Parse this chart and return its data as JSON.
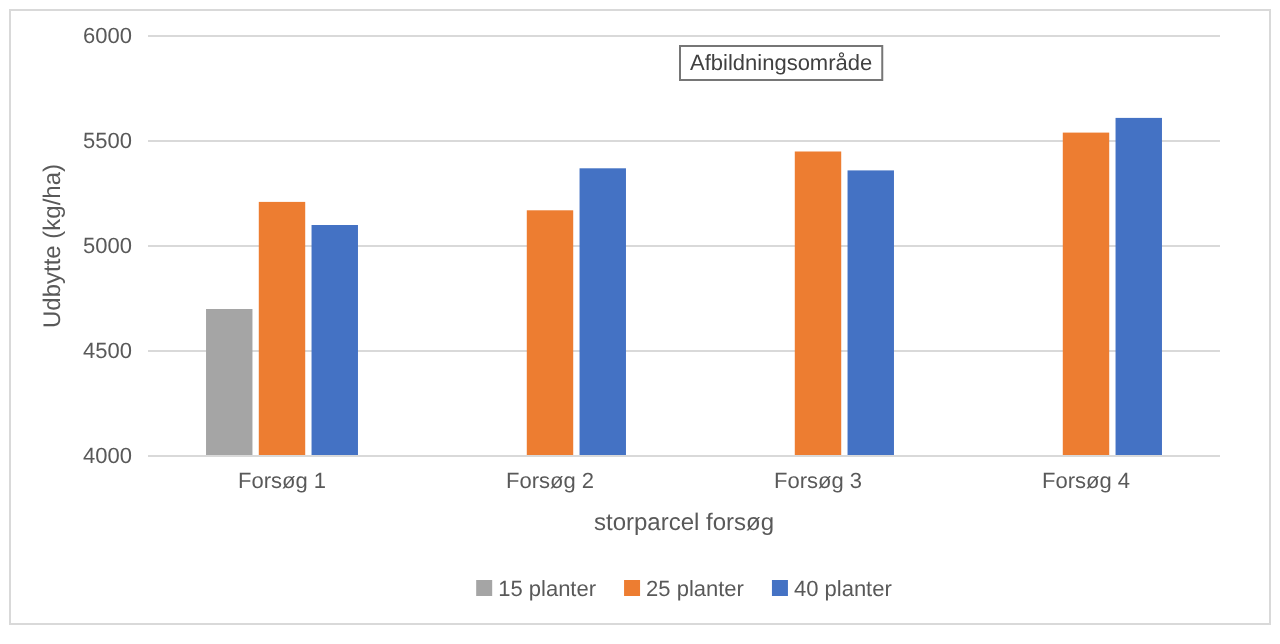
{
  "chart_data": {
    "type": "bar",
    "xlabel": "storparcel forsøg",
    "ylabel": "Udbytte (kg/ha)",
    "categories": [
      "Forsøg 1",
      "Forsøg 2",
      "Forsøg 3",
      "Forsøg 4"
    ],
    "series": [
      {
        "name": "15 planter",
        "color": "#a5a5a5",
        "values": [
          4700,
          null,
          null,
          null
        ]
      },
      {
        "name": "25 planter",
        "color": "#ed7d31",
        "values": [
          5210,
          5170,
          5450,
          5540
        ]
      },
      {
        "name": "40 planter",
        "color": "#4472c4",
        "values": [
          5100,
          5370,
          5360,
          5610
        ]
      }
    ],
    "ylim": [
      4000,
      6000
    ],
    "yticks": [
      4000,
      4500,
      5000,
      5500,
      6000
    ],
    "grid": "y",
    "legend": "bottom",
    "annotations": [
      "Afbildningsområde"
    ]
  }
}
